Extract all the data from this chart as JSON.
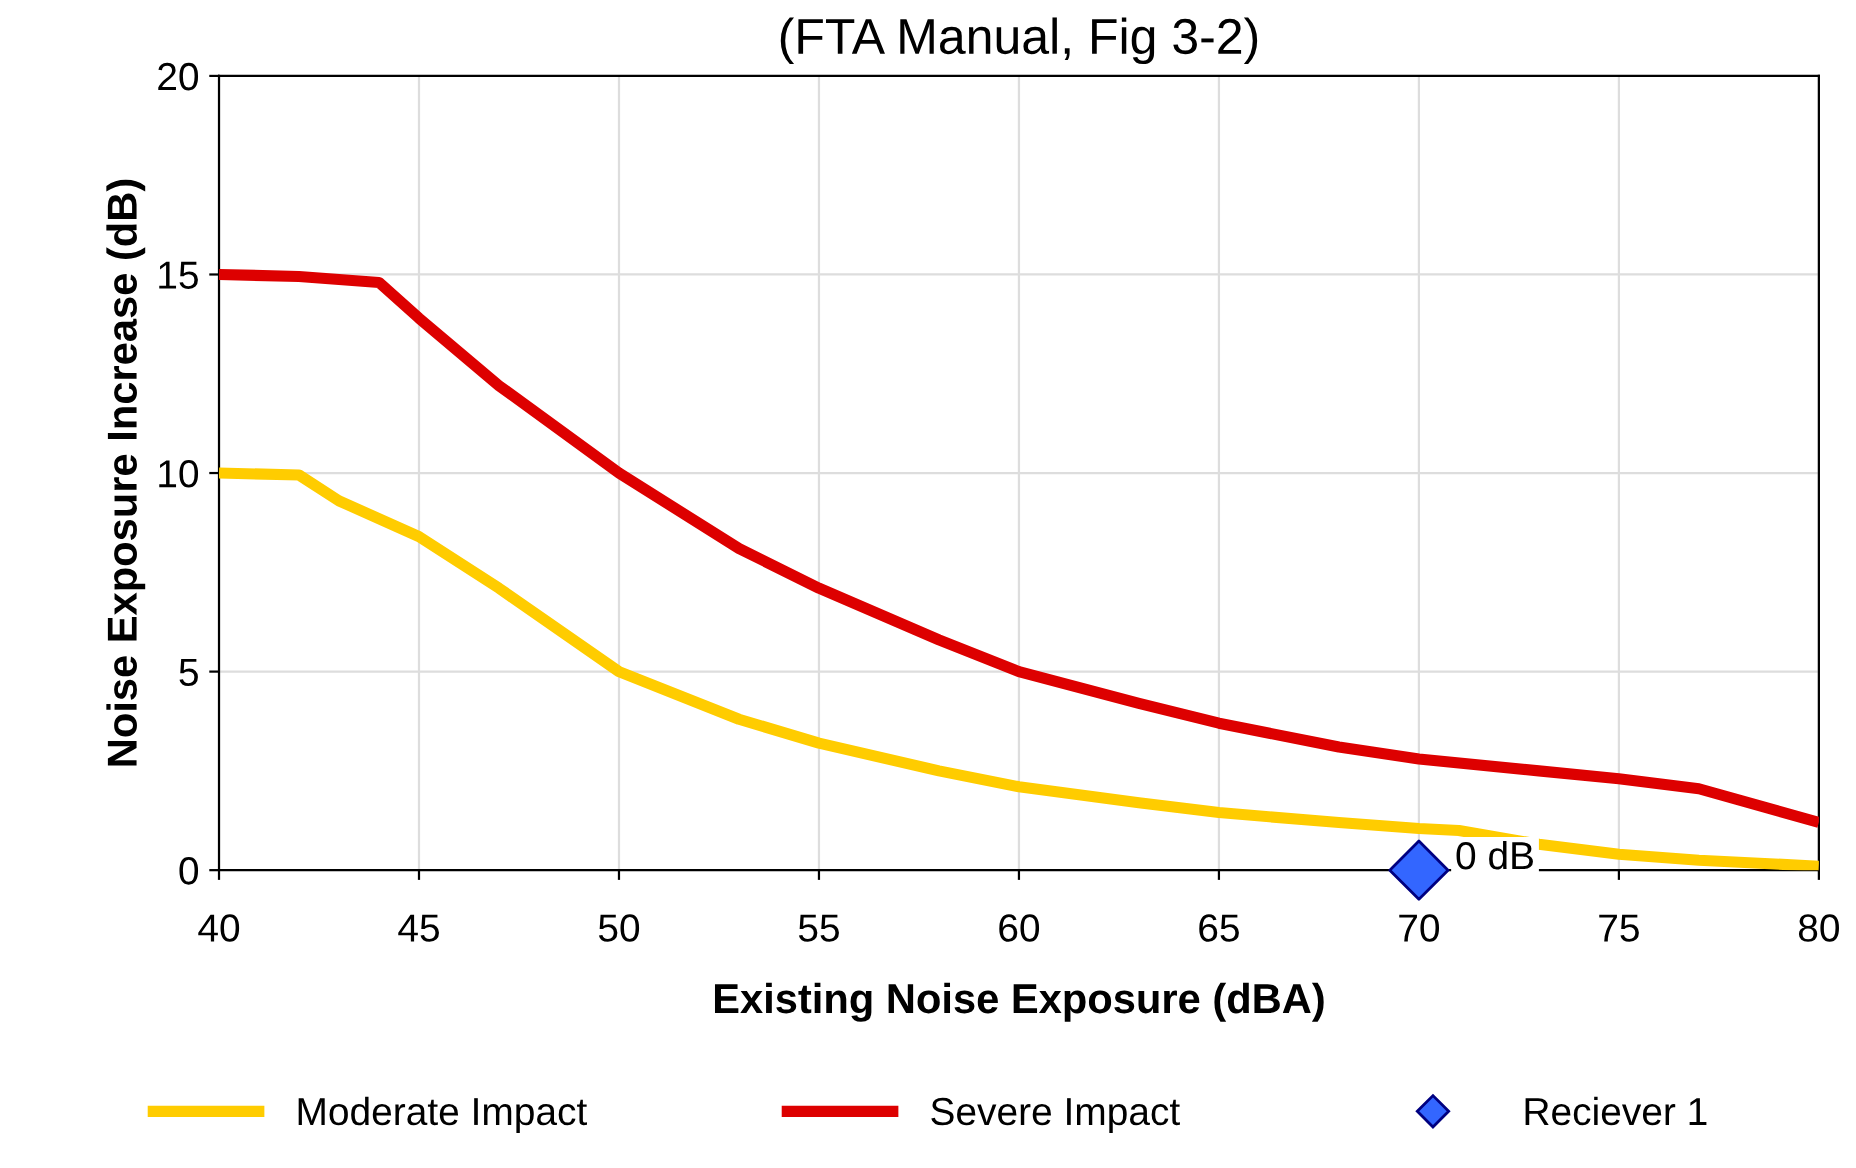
{
  "chart_data": {
    "type": "line",
    "title": "(FTA Manual, Fig 3-2)",
    "xlabel": "Existing Noise Exposure (dBA)",
    "ylabel": "Noise Exposure Increase (dB)",
    "xlim": [
      40,
      80
    ],
    "xticks": [
      40,
      45,
      50,
      55,
      60,
      65,
      70,
      75,
      80
    ],
    "ylim": [
      0,
      20
    ],
    "yticks": [
      0,
      5,
      10,
      15,
      20
    ],
    "grid": true,
    "legend": "bottom",
    "series": [
      {
        "name": "Moderate Impact",
        "color": "#ffcc00",
        "marker": "none",
        "x": [
          40,
          42,
          43,
          45,
          47,
          50,
          53,
          55,
          58,
          60,
          63,
          65,
          68,
          70,
          71,
          73,
          75,
          77,
          80
        ],
        "values": [
          10,
          9.95,
          9.3,
          8.4,
          7.1,
          5.0,
          3.8,
          3.2,
          2.5,
          2.1,
          1.7,
          1.45,
          1.2,
          1.05,
          1.0,
          0.65,
          0.4,
          0.25,
          0.1
        ]
      },
      {
        "name": "Severe Impact",
        "color": "#dd0000",
        "marker": "none",
        "x": [
          40,
          42,
          44,
          45,
          47,
          50,
          53,
          55,
          58,
          60,
          63,
          65,
          68,
          70,
          73,
          75,
          77,
          80
        ],
        "values": [
          15,
          14.95,
          14.8,
          13.9,
          12.2,
          10,
          8.1,
          7.1,
          5.8,
          5.0,
          4.2,
          3.7,
          3.1,
          2.8,
          2.5,
          2.3,
          2.05,
          1.2
        ]
      },
      {
        "name": "Reciever 1",
        "type": "scatter",
        "color": "#3366ff",
        "marker": "diamond",
        "x": [
          70
        ],
        "values": [
          0
        ],
        "value_labels": [
          "0 dB"
        ]
      }
    ]
  }
}
